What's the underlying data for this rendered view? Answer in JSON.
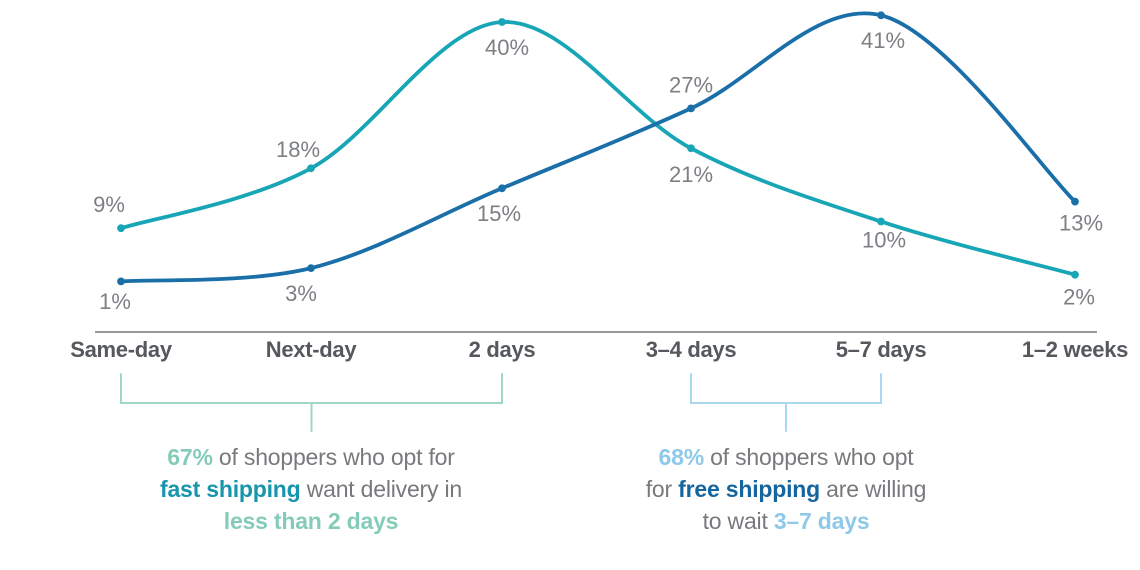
{
  "chart_data": {
    "type": "line",
    "categories": [
      "Same-day",
      "Next-day",
      "2 days",
      "3–4 days",
      "5–7 days",
      "1–2 weeks"
    ],
    "series": [
      {
        "name": "fast shipping",
        "color": "#18a6b7",
        "values": [
          9,
          18,
          40,
          21,
          10,
          2
        ],
        "label_offsets": [
          [
            -12,
            -22
          ],
          [
            -13,
            -17
          ],
          [
            5,
            27
          ],
          [
            0,
            28
          ],
          [
            3,
            20
          ],
          [
            4,
            24
          ]
        ]
      },
      {
        "name": "free shipping",
        "color": "#1b6fa9",
        "values": [
          1,
          3,
          15,
          27,
          41,
          13
        ],
        "label_offsets": [
          [
            -6,
            22
          ],
          [
            -10,
            27
          ],
          [
            -3,
            27
          ],
          [
            0,
            -22
          ],
          [
            2,
            27
          ],
          [
            6,
            23
          ]
        ]
      }
    ],
    "value_suffix": "%",
    "title": "",
    "xlabel": "",
    "ylabel": "",
    "ylim": [
      0,
      45
    ],
    "grid": false,
    "legend": false,
    "axis_color": "#97999c",
    "value_label_color": "#7c7f83",
    "category_label_color": "#55595e"
  },
  "annotations": {
    "fast": {
      "span": [
        0,
        2
      ],
      "bracket_color": "#9fd6c5",
      "text_color": "#77797d",
      "hl_color": "#85ccb8",
      "strong_color": "#1795ac",
      "lines": [
        [
          {
            "t": "67%",
            "s": "hl"
          },
          {
            "t": " of shoppers who opt for",
            "s": ""
          }
        ],
        [
          {
            "t": "fast shipping",
            "s": "strong"
          },
          {
            "t": " want delivery in",
            "s": ""
          }
        ],
        [
          {
            "t": "less than 2 days",
            "s": "hl"
          }
        ]
      ]
    },
    "free": {
      "span": [
        3,
        4
      ],
      "bracket_color": "#a9d8f1",
      "text_color": "#77797d",
      "hl_color": "#8ec9ea",
      "strong_color": "#15659f",
      "lines": [
        [
          {
            "t": "68%",
            "s": "hl"
          },
          {
            "t": " of shoppers who opt",
            "s": ""
          }
        ],
        [
          {
            "t": "for ",
            "s": ""
          },
          {
            "t": "free shipping",
            "s": "strong"
          },
          {
            "t": " are willing",
            "s": ""
          }
        ],
        [
          {
            "t": "to wait ",
            "s": ""
          },
          {
            "t": "3–7 days",
            "s": "hl"
          }
        ]
      ]
    }
  }
}
